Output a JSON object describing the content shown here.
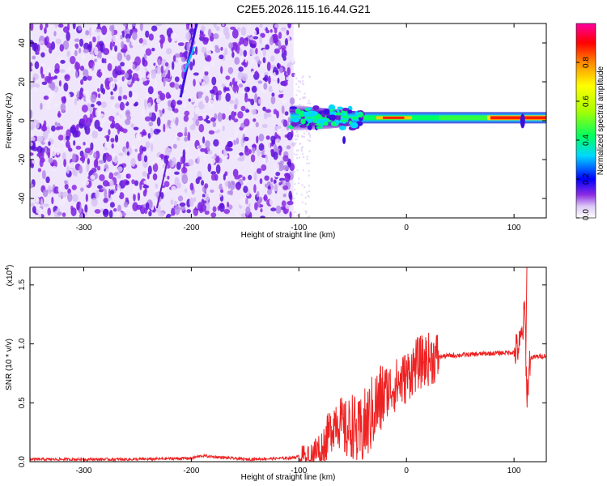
{
  "chart_data": [
    {
      "type": "heatmap",
      "title": "C2E5.2026.115.16.44.G21",
      "xlabel": "Height of straight line (km)",
      "ylabel": "Frequency (Hz)",
      "xlim": [
        -350,
        130
      ],
      "ylim": [
        -50,
        50
      ],
      "xticks": [
        -300,
        -200,
        -100,
        0,
        100
      ],
      "yticks": [
        -40,
        -20,
        0,
        20,
        40
      ],
      "colorbar": {
        "label": "Normalized spectral amplitude",
        "range": [
          0,
          1
        ],
        "ticks": [
          "0.0",
          "0.2",
          "0.4",
          "0.6",
          "0.8"
        ],
        "colors": [
          "#ffffff",
          "#dcc8f5",
          "#8a2be2",
          "#0000ff",
          "#00d8ff",
          "#00ff60",
          "#a8ff00",
          "#ffff00",
          "#ff8800",
          "#ff0000",
          "#ff00a0"
        ]
      },
      "features": {
        "noise_region_x": [
          -350,
          -105
        ],
        "band_center_hz": 1.5,
        "streak_x": [
          -210,
          -195
        ]
      }
    },
    {
      "type": "line",
      "xlabel": "Height of straight line (km)",
      "ylabel": "SNR (10 * v/v)",
      "scale_label": "(x10",
      "scale_exp": "4",
      "xlim": [
        -350,
        130
      ],
      "ylim": [
        0,
        1.65
      ],
      "xticks": [
        -300,
        -200,
        -100,
        0,
        100
      ],
      "yticks": [
        "0.0",
        "0.5",
        "1.0",
        "1.5"
      ],
      "color": "#ee2222",
      "series": [
        {
          "name": "SNR",
          "x": [
            -350,
            -300,
            -250,
            -200,
            -190,
            -150,
            -110,
            -95,
            -85,
            -80,
            -75,
            -70,
            -65,
            -60,
            -55,
            -50,
            -45,
            -40,
            -35,
            -30,
            -25,
            -20,
            -15,
            -10,
            -5,
            0,
            5,
            10,
            20,
            30,
            40,
            60,
            80,
            100,
            105,
            108,
            110,
            112,
            115,
            120,
            130
          ],
          "y": [
            0.02,
            0.02,
            0.02,
            0.03,
            0.05,
            0.02,
            0.03,
            0.05,
            0.08,
            0.12,
            0.18,
            0.28,
            0.38,
            0.3,
            0.25,
            0.32,
            0.2,
            0.28,
            0.35,
            0.45,
            0.5,
            0.6,
            0.62,
            0.65,
            0.68,
            0.72,
            0.78,
            0.83,
            0.87,
            0.89,
            0.9,
            0.91,
            0.92,
            0.93,
            0.98,
            1.1,
            1.3,
            0.55,
            0.88,
            0.89,
            0.9
          ]
        }
      ]
    }
  ]
}
